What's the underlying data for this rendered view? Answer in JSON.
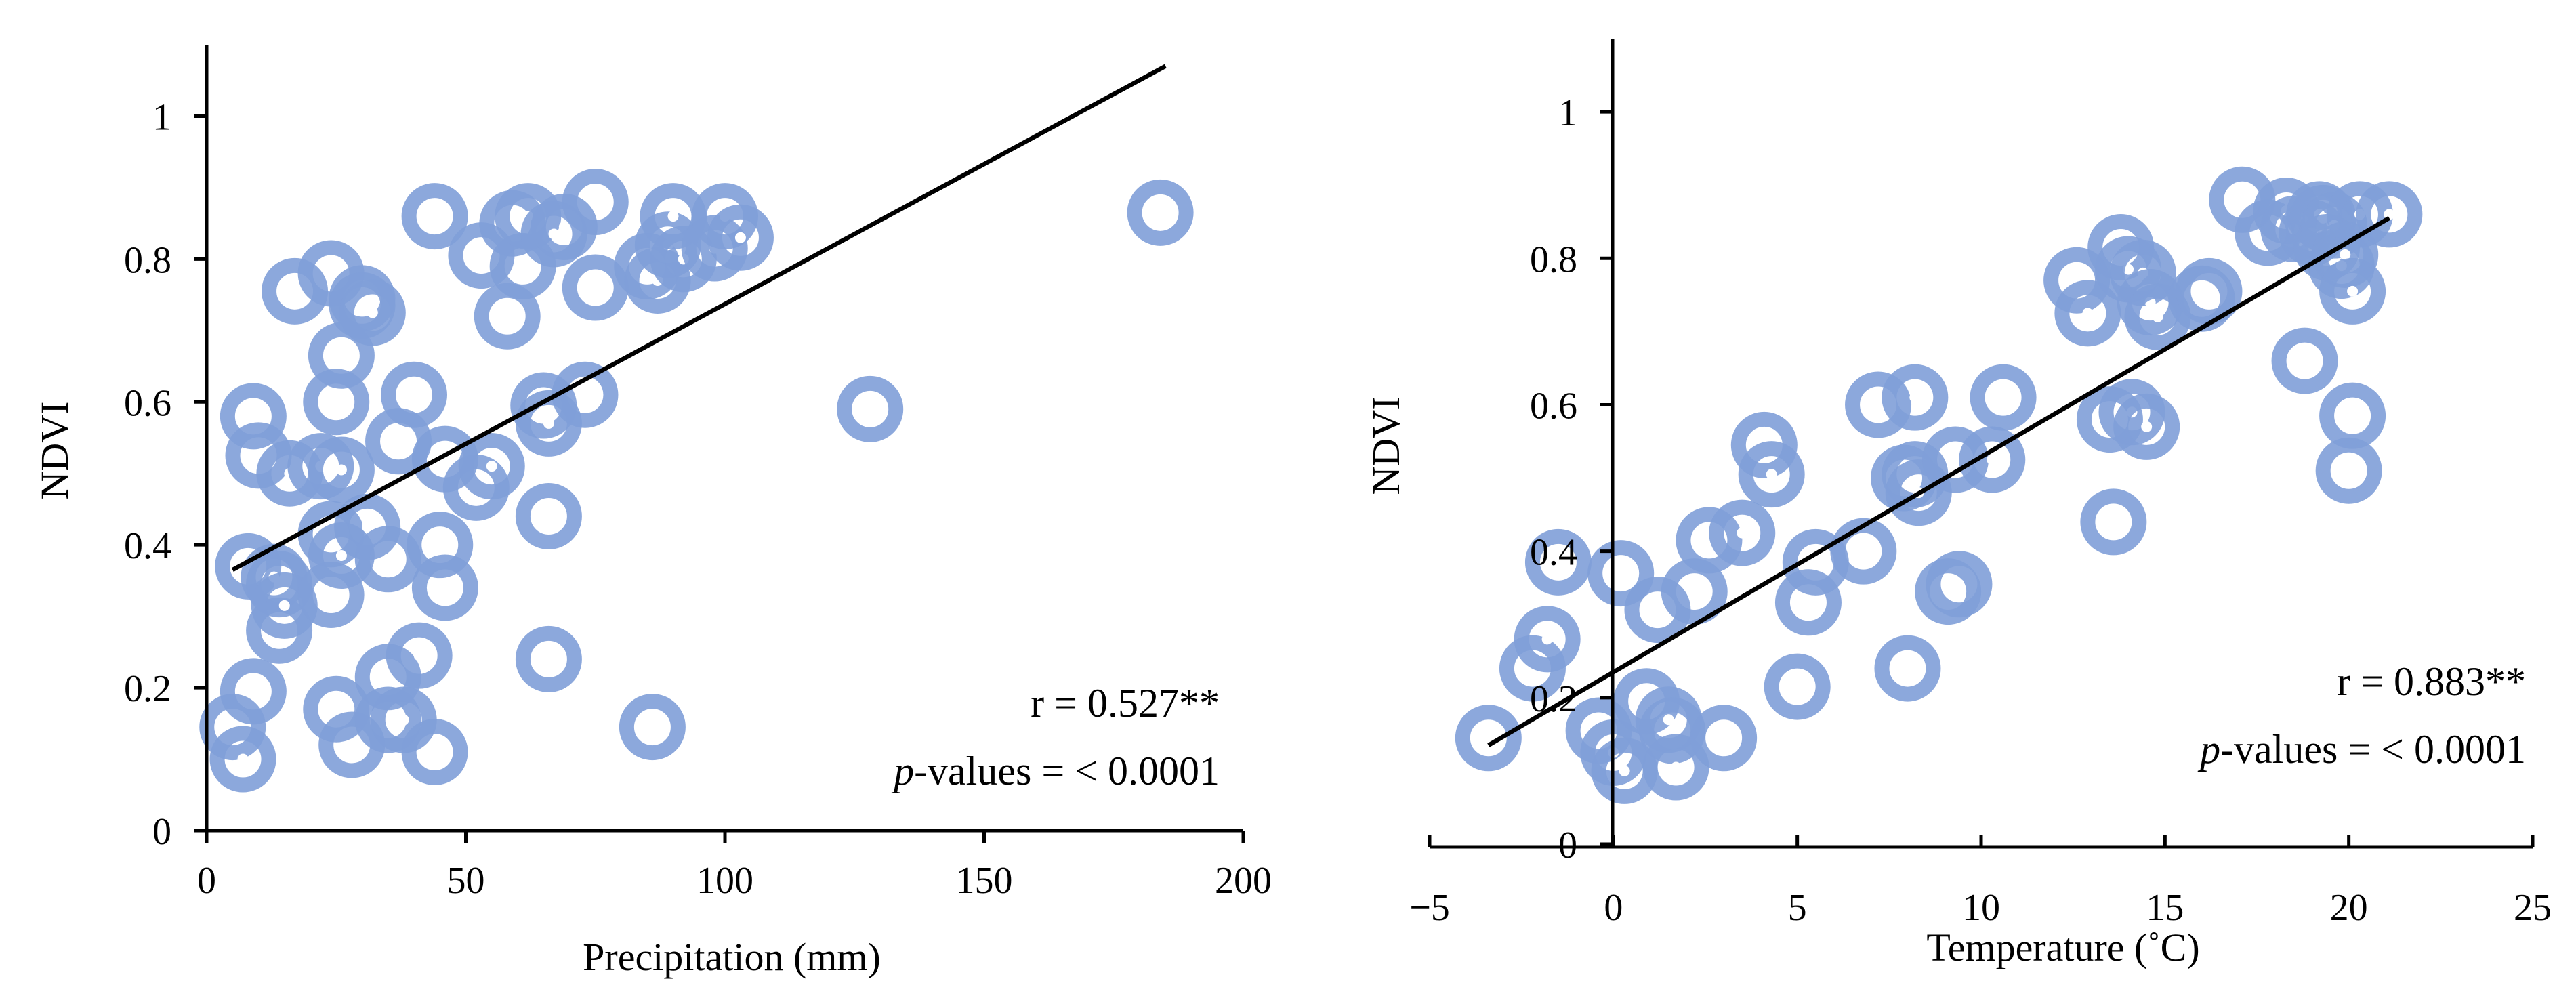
{
  "colors": {
    "marker": "#7f9fd8",
    "center": "#ffffff",
    "axis": "#000000",
    "trendline": "#000000"
  },
  "chart_data": [
    {
      "type": "scatter",
      "xlabel": "Precipitation (mm)",
      "ylabel": "NDVI",
      "xlim": [
        0,
        200
      ],
      "ylim": [
        0,
        1.1
      ],
      "xticks": [
        "0",
        "50",
        "100",
        "150",
        "200"
      ],
      "yticks": [
        "0",
        "0.2",
        "0.4",
        "0.6",
        "0.8",
        "1"
      ],
      "trendline": {
        "x": [
          5,
          185
        ],
        "y": [
          0.365,
          1.07
        ]
      },
      "annotation": {
        "r_text": "r = 0.527**",
        "p_italic": "p",
        "p_text": "-values = < 0.0001"
      },
      "points": [
        [
          5,
          0.145
        ],
        [
          7,
          0.1
        ],
        [
          8,
          0.37
        ],
        [
          9,
          0.58
        ],
        [
          9,
          0.195
        ],
        [
          10,
          0.525
        ],
        [
          13,
          0.355
        ],
        [
          14,
          0.28
        ],
        [
          14,
          0.345
        ],
        [
          15,
          0.315
        ],
        [
          16,
          0.5
        ],
        [
          17,
          0.755
        ],
        [
          22,
          0.51
        ],
        [
          24,
          0.78
        ],
        [
          24,
          0.33
        ],
        [
          24,
          0.415
        ],
        [
          25,
          0.17
        ],
        [
          25,
          0.6
        ],
        [
          26,
          0.665
        ],
        [
          26,
          0.505
        ],
        [
          26,
          0.385
        ],
        [
          28,
          0.12
        ],
        [
          30,
          0.745
        ],
        [
          30,
          0.735
        ],
        [
          31,
          0.425
        ],
        [
          32,
          0.725
        ],
        [
          35,
          0.215
        ],
        [
          35,
          0.38
        ],
        [
          35,
          0.155
        ],
        [
          37,
          0.545
        ],
        [
          38,
          0.155
        ],
        [
          40,
          0.61
        ],
        [
          41,
          0.245
        ],
        [
          44,
          0.86
        ],
        [
          44,
          0.11
        ],
        [
          45,
          0.4
        ],
        [
          46,
          0.52
        ],
        [
          46,
          0.34
        ],
        [
          52,
          0.48
        ],
        [
          53,
          0.805
        ],
        [
          55,
          0.51
        ],
        [
          58,
          0.72
        ],
        [
          59,
          0.85
        ],
        [
          61,
          0.79
        ],
        [
          62,
          0.86
        ],
        [
          65,
          0.595
        ],
        [
          66,
          0.57
        ],
        [
          66,
          0.24
        ],
        [
          66,
          0.44
        ],
        [
          67,
          0.835
        ],
        [
          69,
          0.845
        ],
        [
          73,
          0.61
        ],
        [
          75,
          0.88
        ],
        [
          75,
          0.76
        ],
        [
          85,
          0.79
        ],
        [
          86,
          0.145
        ],
        [
          87,
          0.77
        ],
        [
          89,
          0.82
        ],
        [
          90,
          0.86
        ],
        [
          92,
          0.8
        ],
        [
          98,
          0.815
        ],
        [
          100,
          0.86
        ],
        [
          103,
          0.83
        ],
        [
          128,
          0.59
        ],
        [
          184,
          0.865
        ]
      ]
    },
    {
      "type": "scatter",
      "xlabel": "Temperature (˚C)",
      "ylabel": "NDVI",
      "xlim": [
        -5,
        25
      ],
      "ylim": [
        0,
        1.1
      ],
      "xticks": [
        "−5",
        "0",
        "5",
        "10",
        "15",
        "20",
        "25"
      ],
      "yticks": [
        "0",
        "0.2",
        "0.4",
        "0.6",
        "0.8",
        "1"
      ],
      "trendline": {
        "x": [
          -3.4,
          21.1
        ],
        "y": [
          0.135,
          0.855
        ]
      },
      "annotation": {
        "r_text": "r = 0.883**",
        "p_italic": "p",
        "p_text": "-values = < 0.0001"
      },
      "points": [
        [
          -3.4,
          0.145
        ],
        [
          -2.2,
          0.24
        ],
        [
          -1.8,
          0.28
        ],
        [
          -1.5,
          0.385
        ],
        [
          -0.4,
          0.155
        ],
        [
          0.0,
          0.125
        ],
        [
          0.2,
          0.37
        ],
        [
          0.3,
          0.1
        ],
        [
          0.9,
          0.195
        ],
        [
          1.2,
          0.32
        ],
        [
          1.5,
          0.17
        ],
        [
          1.6,
          0.155
        ],
        [
          1.7,
          0.105
        ],
        [
          2.2,
          0.345
        ],
        [
          2.6,
          0.415
        ],
        [
          3.0,
          0.145
        ],
        [
          3.5,
          0.425
        ],
        [
          4.1,
          0.545
        ],
        [
          4.3,
          0.505
        ],
        [
          5.0,
          0.215
        ],
        [
          5.3,
          0.33
        ],
        [
          5.5,
          0.385
        ],
        [
          6.8,
          0.4
        ],
        [
          7.2,
          0.6
        ],
        [
          7.9,
          0.5
        ],
        [
          8.0,
          0.24
        ],
        [
          8.2,
          0.61
        ],
        [
          8.2,
          0.505
        ],
        [
          8.3,
          0.48
        ],
        [
          9.1,
          0.345
        ],
        [
          9.3,
          0.525
        ],
        [
          9.4,
          0.355
        ],
        [
          10.3,
          0.525
        ],
        [
          10.6,
          0.61
        ],
        [
          12.6,
          0.77
        ],
        [
          12.9,
          0.725
        ],
        [
          13.5,
          0.58
        ],
        [
          13.6,
          0.44
        ],
        [
          13.8,
          0.815
        ],
        [
          14.0,
          0.785
        ],
        [
          14.1,
          0.59
        ],
        [
          14.4,
          0.78
        ],
        [
          14.5,
          0.57
        ],
        [
          14.6,
          0.74
        ],
        [
          14.8,
          0.72
        ],
        [
          16.0,
          0.745
        ],
        [
          16.2,
          0.755
        ],
        [
          17.1,
          0.88
        ],
        [
          17.8,
          0.835
        ],
        [
          18.3,
          0.865
        ],
        [
          18.5,
          0.84
        ],
        [
          18.8,
          0.66
        ],
        [
          19.0,
          0.835
        ],
        [
          19.2,
          0.86
        ],
        [
          19.3,
          0.855
        ],
        [
          19.4,
          0.815
        ],
        [
          19.6,
          0.845
        ],
        [
          19.8,
          0.79
        ],
        [
          19.9,
          0.805
        ],
        [
          20.0,
          0.51
        ],
        [
          20.1,
          0.585
        ],
        [
          20.1,
          0.755
        ],
        [
          20.3,
          0.86
        ],
        [
          21.1,
          0.86
        ]
      ]
    }
  ]
}
